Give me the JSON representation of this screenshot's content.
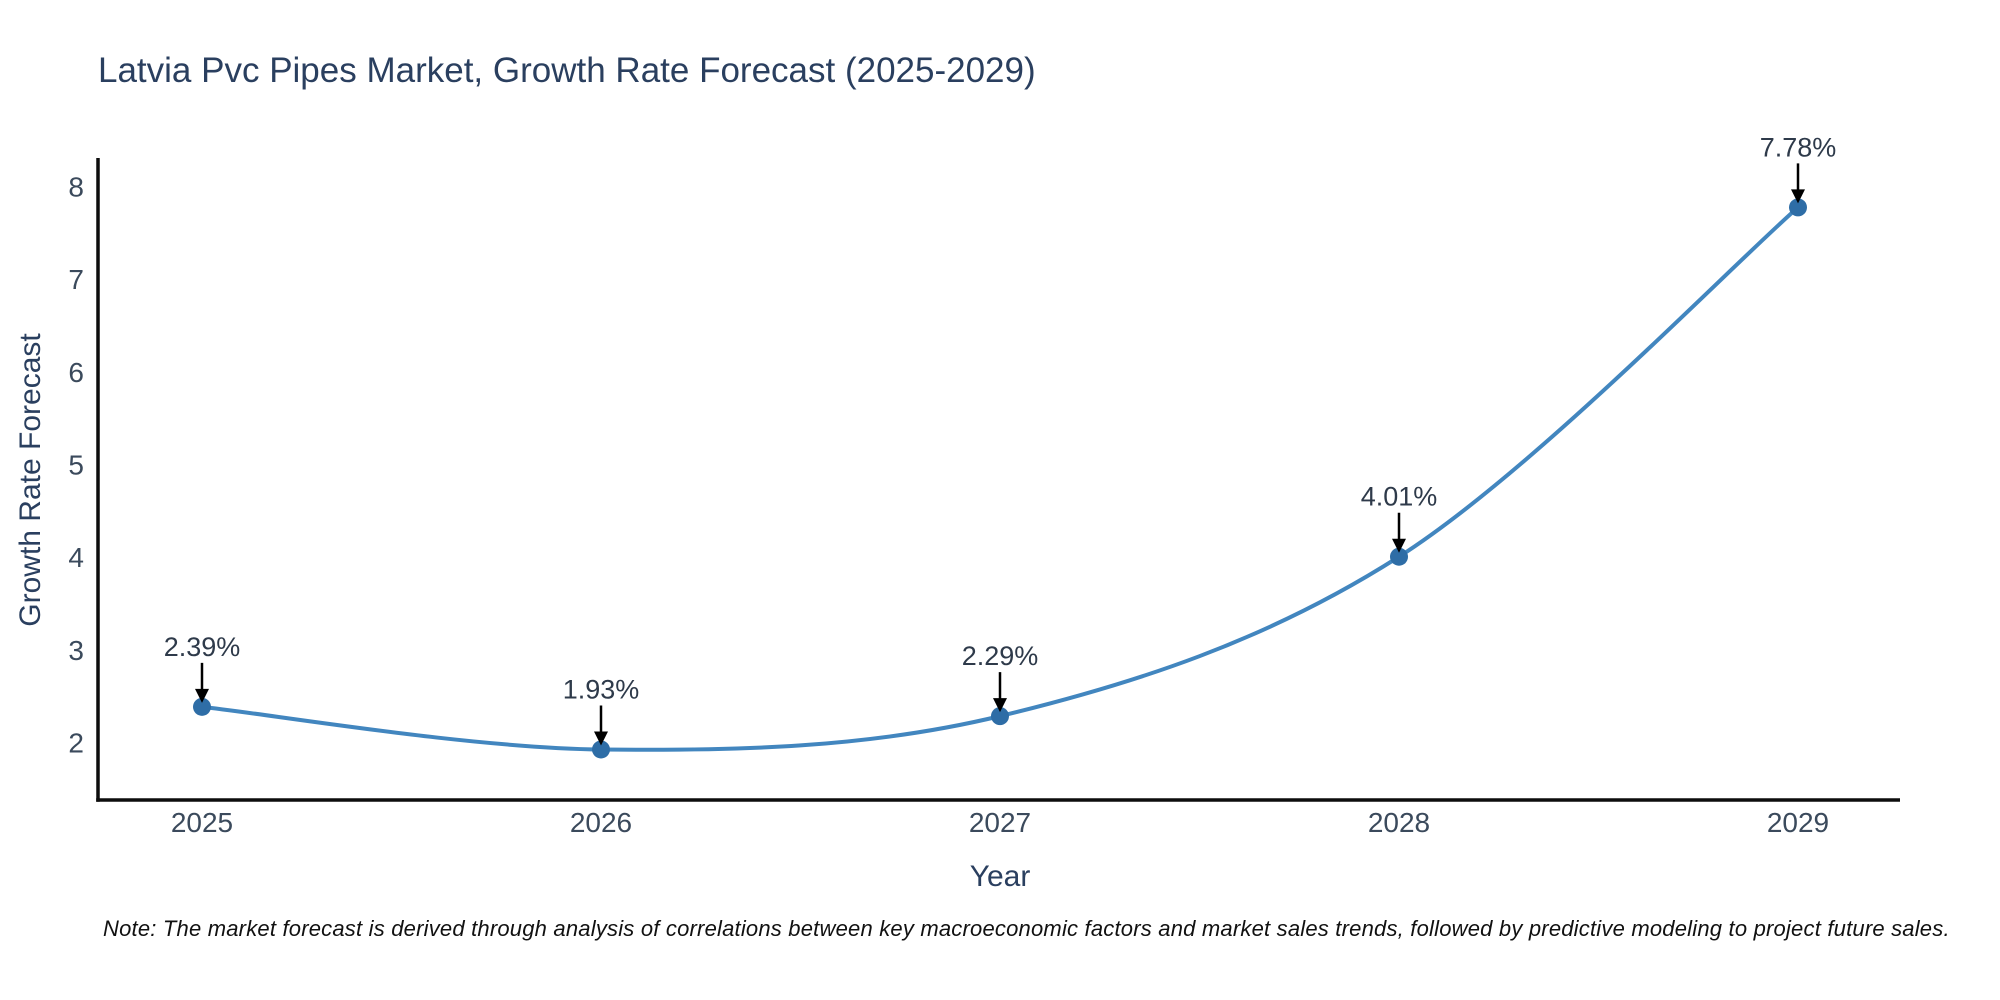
{
  "title": "Latvia Pvc Pipes Market, Growth Rate Forecast (2025-2029)",
  "note": "Note: The market forecast is derived through analysis of correlations between key macroeconomic factors and market sales trends, followed by predictive modeling to project future sales.",
  "chart_data": {
    "type": "line",
    "x": [
      2025,
      2026,
      2027,
      2028,
      2029
    ],
    "values": [
      2.39,
      1.93,
      2.29,
      4.01,
      7.78
    ],
    "point_labels": [
      "2.39%",
      "1.93%",
      "2.29%",
      "4.01%",
      "7.78%"
    ],
    "xlabel": "Year",
    "ylabel": "Growth Rate Forecast",
    "x_tick_labels": [
      "2025",
      "2026",
      "2027",
      "2028",
      "2029"
    ],
    "y_ticks": [
      2,
      3,
      4,
      5,
      6,
      7,
      8
    ],
    "ylim": [
      1.38,
      8.31
    ],
    "xlim": [
      2024.74,
      2029.26
    ],
    "grid": false,
    "legend": "none",
    "marker_style": "circle",
    "line_style": "smooth-spline",
    "annotation_arrows": "down-to-point",
    "colors": {
      "line": "#4286bf",
      "marker": "#2e6da6",
      "axis": "#0d0d0d",
      "title_text": "#2a3f5f",
      "tick_text": "#3b4a5c",
      "annotation_text": "#2e3a4a",
      "arrow": "#000000",
      "note_text": "#111111",
      "background": "#ffffff"
    }
  }
}
